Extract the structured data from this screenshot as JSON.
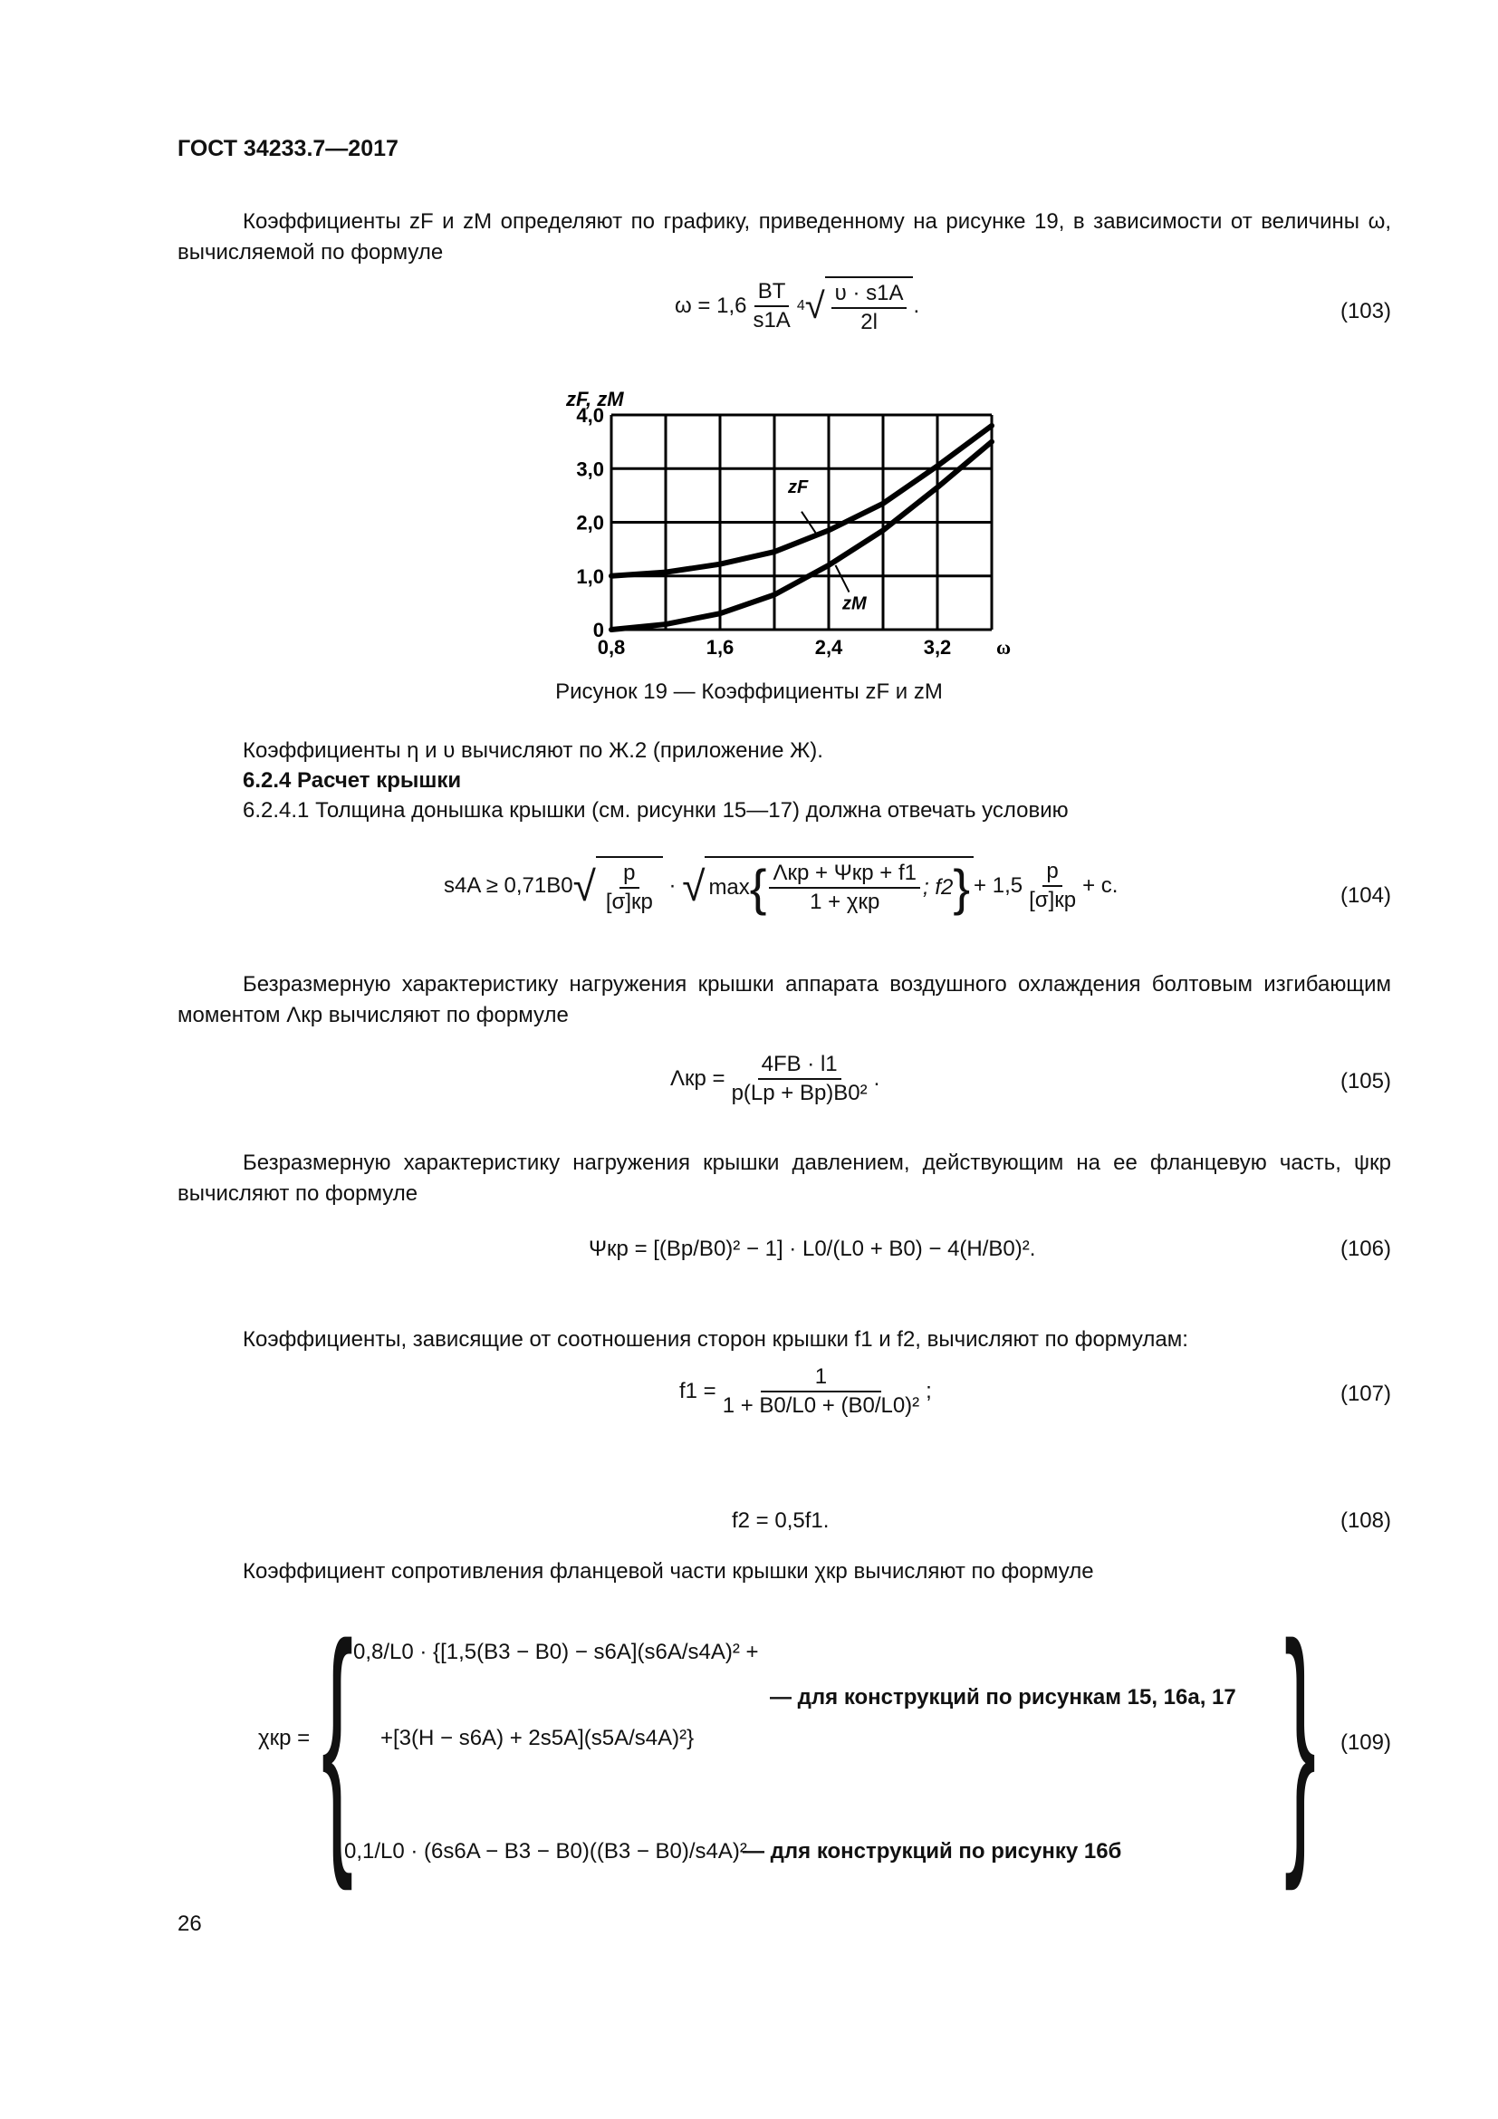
{
  "header": "ГОСТ 34233.7—2017",
  "para1": "Коэффициенты zF и zM определяют по графику, приведенному на рисунке 19, в зависимости от величины ω, вычисляемой по формуле",
  "eq103": {
    "lhs": "ω = 1,6",
    "num": "BТ",
    "den": "s1A",
    "root_index": "4",
    "rnum": "υ · s1A",
    "rden": "2l",
    "tail": ".",
    "number": "(103)"
  },
  "figure": {
    "caption": "Рисунок 19 — Коэффициенты zF и zM"
  },
  "chart_data": {
    "type": "line",
    "title": "",
    "xlabel": "ω",
    "ylabel": "zF, zM",
    "xlim": [
      0.8,
      3.6
    ],
    "ylim": [
      0,
      4.0
    ],
    "x_ticks": [
      "0,8",
      "1,6",
      "2,4",
      "3,2"
    ],
    "y_ticks": [
      "0",
      "1,0",
      "2,0",
      "3,0",
      "4,0"
    ],
    "grid": true,
    "x": [
      0.8,
      1.2,
      1.6,
      2.0,
      2.4,
      2.8,
      3.2,
      3.6
    ],
    "series": [
      {
        "name": "zF",
        "values": [
          1.0,
          1.07,
          1.22,
          1.45,
          1.85,
          2.35,
          3.05,
          3.8
        ]
      },
      {
        "name": "zM",
        "values": [
          0.0,
          0.1,
          0.3,
          0.65,
          1.2,
          1.85,
          2.65,
          3.5
        ]
      }
    ]
  },
  "para2": "Коэффициенты η и υ вычисляют по Ж.2 (приложение Ж).",
  "heading": "6.2.4 Расчет крышки",
  "para3": "6.2.4.1 Толщина донышка крышки (см. рисунки 15—17) должна отвечать условию",
  "eq104": {
    "lhs": "s4A ≥ 0,71B0",
    "f1n": "p",
    "f1d": "[σ]кр",
    "max": "max",
    "f2n": "Λкр + Ψкр + f1",
    "f2d": "1 + χкр",
    "f2": "; f2",
    "plus": "+ 1,5",
    "f3n": "p",
    "f3d": "[σ]кр",
    "tail": "+ c.",
    "number": "(104)"
  },
  "para4": "Безразмерную характеристику нагружения крышки аппарата воздушного охлаждения болтовым изгибающим моментом Λкр вычисляют по формуле",
  "eq105": {
    "lhs": "Λкр =",
    "num": "4FB · l1",
    "den": "p(Lр + Bр)B0²",
    "tail": ".",
    "number": "(105)"
  },
  "para5": "Безразмерную характеристику нагружения крышки давлением, действующим на ее фланцевую часть, ψкр вычисляют по формуле",
  "eq106": {
    "text": "Ψкр = [(Bр/B0)² − 1] · L0/(L0 + B0) − 4(H/B0)².",
    "number": "(106)"
  },
  "para6": "Коэффициенты, зависящие от соотношения сторон крышки f1 и f2, вычисляют по формулам:",
  "eq107": {
    "lhs": "f1 =",
    "num": "1",
    "den": "1 + B0/L0 + (B0/L0)²",
    "tail": ";",
    "number": "(107)"
  },
  "eq108": {
    "text": "f2 = 0,5f1.",
    "number": "(108)"
  },
  "para7": "Коэффициент сопротивления фланцевой части крышки χкр вычисляют по формуле",
  "eq109": {
    "lhs": "χкр =",
    "row1a": "0,8/L0 · {[1,5(B3 − B0) − s6A](s6A/s4A)² +",
    "row1b": "+[3(H − s6A) + 2s5A](s5A/s4A)²}",
    "cond1": "— для конструкций по рисункам 15, 16а, 17",
    "row2": "0,1/L0 · (6s6A − B3 − B0)((B3 − B0)/s4A)²",
    "cond2": "— для конструкций по рисунку 16б",
    "number": "(109)"
  },
  "page_number": "26"
}
